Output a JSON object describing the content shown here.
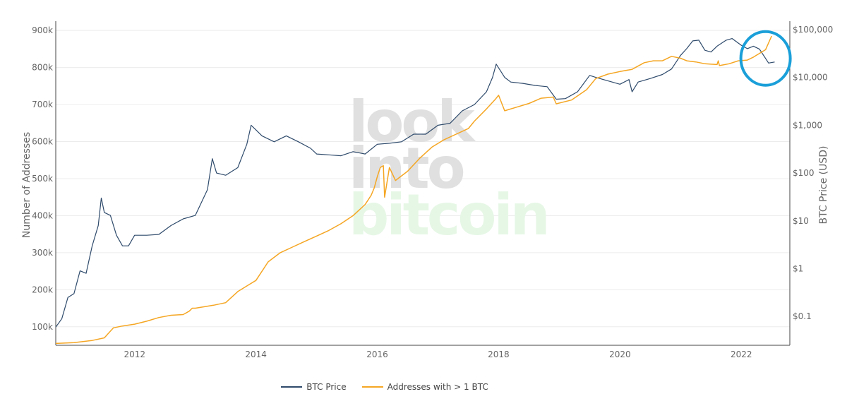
{
  "watermark": {
    "line1": "look",
    "line2": "into",
    "line3": "bitcoin"
  },
  "colors": {
    "btc_price": "#2e4a6b",
    "addresses": "#f5a623",
    "highlight_circle": "#1a9fd9",
    "grid": "#ececec"
  },
  "chart_data": {
    "type": "line",
    "x_ticks": [
      "2012",
      "2014",
      "2016",
      "2018",
      "2020",
      "2022"
    ],
    "x_range": [
      2010.7,
      2022.8
    ],
    "left_axis": {
      "label": "Number of Addresses",
      "ticks": [
        "100k",
        "200k",
        "300k",
        "400k",
        "500k",
        "600k",
        "700k",
        "800k",
        "900k"
      ],
      "range": [
        50000,
        925000
      ]
    },
    "right_axis": {
      "label": "BTC Price (USD)",
      "scale": "log",
      "ticks": [
        "$0.1",
        "$1",
        "$10",
        "$100",
        "$1,000",
        "$10,000",
        "$100,000"
      ],
      "range": [
        0.025,
        150000
      ]
    },
    "series": [
      {
        "name": "BTC Price",
        "axis": "right",
        "color": "#2e4a6b",
        "points": [
          [
            2010.7,
            0.06
          ],
          [
            2010.8,
            0.09
          ],
          [
            2010.9,
            0.25
          ],
          [
            2011.0,
            0.3
          ],
          [
            2011.1,
            0.9
          ],
          [
            2011.2,
            0.8
          ],
          [
            2011.3,
            3
          ],
          [
            2011.4,
            8
          ],
          [
            2011.45,
            30
          ],
          [
            2011.5,
            15
          ],
          [
            2011.6,
            13
          ],
          [
            2011.7,
            5
          ],
          [
            2011.8,
            3
          ],
          [
            2011.9,
            3
          ],
          [
            2012.0,
            5
          ],
          [
            2012.2,
            5
          ],
          [
            2012.4,
            5.2
          ],
          [
            2012.6,
            8
          ],
          [
            2012.8,
            11
          ],
          [
            2013.0,
            13
          ],
          [
            2013.2,
            45
          ],
          [
            2013.28,
            200
          ],
          [
            2013.35,
            100
          ],
          [
            2013.5,
            90
          ],
          [
            2013.7,
            130
          ],
          [
            2013.85,
            400
          ],
          [
            2013.92,
            1000
          ],
          [
            2014.0,
            800
          ],
          [
            2014.1,
            600
          ],
          [
            2014.3,
            450
          ],
          [
            2014.5,
            600
          ],
          [
            2014.7,
            450
          ],
          [
            2014.9,
            330
          ],
          [
            2015.0,
            250
          ],
          [
            2015.2,
            240
          ],
          [
            2015.4,
            230
          ],
          [
            2015.6,
            280
          ],
          [
            2015.8,
            250
          ],
          [
            2016.0,
            400
          ],
          [
            2016.2,
            420
          ],
          [
            2016.4,
            450
          ],
          [
            2016.6,
            650
          ],
          [
            2016.8,
            650
          ],
          [
            2017.0,
            1000
          ],
          [
            2017.2,
            1100
          ],
          [
            2017.4,
            2000
          ],
          [
            2017.6,
            2700
          ],
          [
            2017.8,
            5000
          ],
          [
            2017.9,
            10000
          ],
          [
            2017.96,
            19000
          ],
          [
            2018.1,
            10000
          ],
          [
            2018.2,
            8000
          ],
          [
            2018.4,
            7500
          ],
          [
            2018.6,
            6800
          ],
          [
            2018.8,
            6400
          ],
          [
            2018.95,
            3500
          ],
          [
            2019.1,
            3600
          ],
          [
            2019.3,
            5000
          ],
          [
            2019.5,
            11000
          ],
          [
            2019.6,
            10000
          ],
          [
            2019.8,
            8500
          ],
          [
            2020.0,
            7200
          ],
          [
            2020.15,
            9000
          ],
          [
            2020.2,
            5000
          ],
          [
            2020.3,
            8000
          ],
          [
            2020.5,
            9500
          ],
          [
            2020.7,
            11500
          ],
          [
            2020.85,
            15000
          ],
          [
            2021.0,
            29000
          ],
          [
            2021.1,
            40000
          ],
          [
            2021.2,
            58000
          ],
          [
            2021.3,
            60000
          ],
          [
            2021.4,
            37000
          ],
          [
            2021.5,
            34000
          ],
          [
            2021.6,
            45000
          ],
          [
            2021.75,
            60000
          ],
          [
            2021.85,
            65000
          ],
          [
            2022.0,
            47000
          ],
          [
            2022.1,
            40000
          ],
          [
            2022.2,
            45000
          ],
          [
            2022.3,
            39000
          ],
          [
            2022.45,
            20000
          ],
          [
            2022.55,
            21000
          ]
        ]
      },
      {
        "name": "Addresses with > 1 BTC",
        "axis": "left",
        "color": "#f5a623",
        "points": [
          [
            2010.7,
            55000
          ],
          [
            2011.0,
            57000
          ],
          [
            2011.3,
            63000
          ],
          [
            2011.5,
            70000
          ],
          [
            2011.65,
            97000
          ],
          [
            2011.8,
            102000
          ],
          [
            2012.0,
            107000
          ],
          [
            2012.2,
            115000
          ],
          [
            2012.4,
            125000
          ],
          [
            2012.6,
            131000
          ],
          [
            2012.8,
            133000
          ],
          [
            2012.9,
            142000
          ],
          [
            2012.95,
            150000
          ],
          [
            2013.0,
            150000
          ],
          [
            2013.3,
            158000
          ],
          [
            2013.5,
            165000
          ],
          [
            2013.7,
            195000
          ],
          [
            2013.9,
            215000
          ],
          [
            2014.0,
            225000
          ],
          [
            2014.2,
            275000
          ],
          [
            2014.4,
            300000
          ],
          [
            2014.6,
            315000
          ],
          [
            2014.8,
            330000
          ],
          [
            2015.0,
            345000
          ],
          [
            2015.2,
            360000
          ],
          [
            2015.4,
            378000
          ],
          [
            2015.6,
            400000
          ],
          [
            2015.8,
            430000
          ],
          [
            2015.9,
            455000
          ],
          [
            2015.95,
            475000
          ],
          [
            2016.0,
            505000
          ],
          [
            2016.05,
            530000
          ],
          [
            2016.1,
            535000
          ],
          [
            2016.12,
            450000
          ],
          [
            2016.2,
            530000
          ],
          [
            2016.3,
            495000
          ],
          [
            2016.5,
            520000
          ],
          [
            2016.7,
            555000
          ],
          [
            2016.9,
            585000
          ],
          [
            2017.1,
            605000
          ],
          [
            2017.3,
            620000
          ],
          [
            2017.5,
            635000
          ],
          [
            2017.6,
            655000
          ],
          [
            2017.8,
            688000
          ],
          [
            2017.95,
            715000
          ],
          [
            2018.0,
            725000
          ],
          [
            2018.1,
            683000
          ],
          [
            2018.3,
            693000
          ],
          [
            2018.5,
            703000
          ],
          [
            2018.7,
            717000
          ],
          [
            2018.9,
            720000
          ],
          [
            2018.95,
            702000
          ],
          [
            2019.2,
            712000
          ],
          [
            2019.45,
            740000
          ],
          [
            2019.6,
            770000
          ],
          [
            2019.8,
            782000
          ],
          [
            2020.0,
            789000
          ],
          [
            2020.2,
            795000
          ],
          [
            2020.4,
            813000
          ],
          [
            2020.55,
            818000
          ],
          [
            2020.7,
            818000
          ],
          [
            2020.85,
            830000
          ],
          [
            2021.0,
            825000
          ],
          [
            2021.1,
            818000
          ],
          [
            2021.25,
            815000
          ],
          [
            2021.4,
            810000
          ],
          [
            2021.5,
            809000
          ],
          [
            2021.6,
            808000
          ],
          [
            2021.62,
            818000
          ],
          [
            2021.64,
            805000
          ],
          [
            2021.8,
            810000
          ],
          [
            2021.95,
            818000
          ],
          [
            2022.1,
            820000
          ],
          [
            2022.2,
            828000
          ],
          [
            2022.3,
            838000
          ],
          [
            2022.4,
            848000
          ],
          [
            2022.5,
            885000
          ]
        ]
      }
    ],
    "legend": [
      "BTC Price",
      "Addresses with > 1 BTC"
    ],
    "legend_position": "bottom-center",
    "grid": true,
    "annotation": {
      "type": "circle",
      "around": [
        2022.4,
        25000
      ],
      "color": "#1a9fd9"
    }
  }
}
